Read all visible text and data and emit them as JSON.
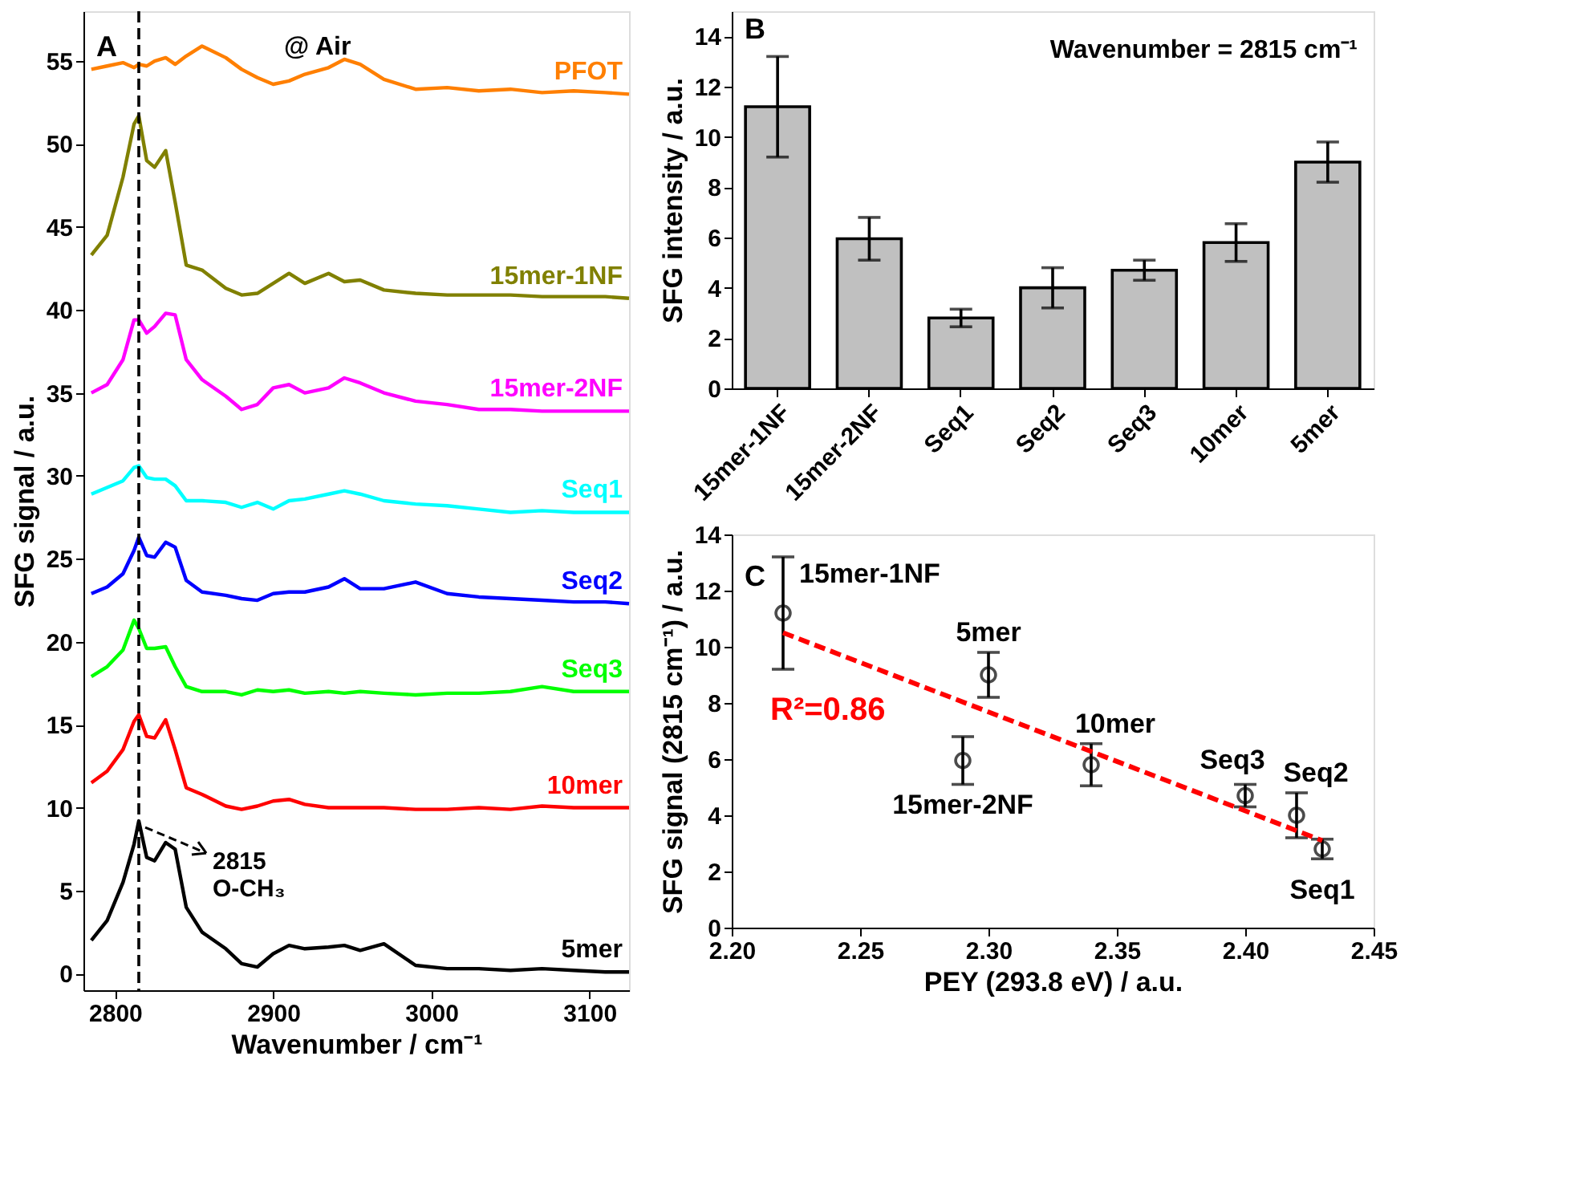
{
  "chart_data": [
    {
      "type": "line",
      "xlabel": "Wavenumber / cm⁻¹",
      "ylabel": "SFG signal / a.u.",
      "xlim": [
        2780,
        3125
      ],
      "xticks": [
        2800,
        2900,
        3000,
        3100
      ],
      "ylim": [
        -1,
        58
      ],
      "yticks": [
        0,
        5,
        10,
        15,
        20,
        25,
        30,
        35,
        40,
        45,
        50,
        55
      ],
      "x": [
        2785,
        2795,
        2805,
        2812,
        2815,
        2820,
        2825,
        2832,
        2838,
        2845,
        2855,
        2870,
        2880,
        2890,
        2900,
        2910,
        2920,
        2935,
        2945,
        2955,
        2970,
        2990,
        3010,
        3030,
        3050,
        3070,
        3090,
        3110,
        3125
      ],
      "series": [
        {
          "name": "PFOT",
          "color": "#ff7f00",
          "values": [
            54.5,
            54.7,
            54.9,
            54.6,
            54.8,
            54.7,
            55.0,
            55.2,
            54.8,
            55.3,
            55.9,
            55.2,
            54.5,
            54.0,
            53.6,
            53.8,
            54.2,
            54.6,
            55.1,
            54.8,
            53.9,
            53.3,
            53.4,
            53.2,
            53.3,
            53.1,
            53.2,
            53.1,
            53.0
          ]
        },
        {
          "name": "15mer-1NF",
          "color": "#808000",
          "values": [
            43.3,
            44.5,
            48.0,
            51.2,
            51.7,
            49.0,
            48.6,
            49.6,
            46.5,
            42.7,
            42.4,
            41.3,
            40.9,
            41.0,
            41.6,
            42.2,
            41.6,
            42.2,
            41.7,
            41.8,
            41.2,
            41.0,
            40.9,
            40.9,
            40.9,
            40.8,
            40.8,
            40.8,
            40.7
          ]
        },
        {
          "name": "15mer-2NF",
          "color": "#ff00ff",
          "values": [
            35.0,
            35.5,
            37.0,
            39.4,
            39.4,
            38.6,
            39.0,
            39.8,
            39.7,
            37.0,
            35.8,
            34.8,
            34.0,
            34.3,
            35.3,
            35.5,
            35.0,
            35.3,
            35.9,
            35.6,
            35.0,
            34.5,
            34.3,
            34.0,
            34.0,
            33.9,
            33.9,
            33.9,
            33.9
          ]
        },
        {
          "name": "Seq1",
          "color": "#00ffff",
          "values": [
            28.9,
            29.3,
            29.7,
            30.5,
            30.6,
            29.9,
            29.8,
            29.8,
            29.4,
            28.5,
            28.5,
            28.4,
            28.1,
            28.4,
            28.0,
            28.5,
            28.6,
            28.9,
            29.1,
            28.9,
            28.5,
            28.3,
            28.2,
            28.0,
            27.8,
            27.9,
            27.8,
            27.8,
            27.8
          ]
        },
        {
          "name": "Seq2",
          "color": "#0000ff",
          "values": [
            22.9,
            23.3,
            24.1,
            25.5,
            26.3,
            25.2,
            25.1,
            26.0,
            25.7,
            23.7,
            23.0,
            22.8,
            22.6,
            22.5,
            22.9,
            23.0,
            23.0,
            23.3,
            23.8,
            23.2,
            23.2,
            23.6,
            22.9,
            22.7,
            22.6,
            22.5,
            22.4,
            22.4,
            22.3
          ]
        },
        {
          "name": "Seq3",
          "color": "#00ff00",
          "values": [
            17.9,
            18.5,
            19.5,
            21.3,
            20.8,
            19.6,
            19.6,
            19.7,
            18.5,
            17.3,
            17.0,
            17.0,
            16.8,
            17.1,
            17.0,
            17.1,
            16.9,
            17.0,
            16.9,
            17.0,
            16.9,
            16.8,
            16.9,
            16.9,
            17.0,
            17.3,
            17.0,
            17.0,
            17.0
          ]
        },
        {
          "name": "10mer",
          "color": "#ff0000",
          "values": [
            11.5,
            12.2,
            13.5,
            15.2,
            15.6,
            14.3,
            14.2,
            15.3,
            13.5,
            11.2,
            10.8,
            10.1,
            9.9,
            10.1,
            10.4,
            10.5,
            10.2,
            10.0,
            10.0,
            10.0,
            10.0,
            9.9,
            9.9,
            10.0,
            9.9,
            10.1,
            10.0,
            10.0,
            10.0
          ]
        },
        {
          "name": "5mer",
          "color": "#000000",
          "values": [
            2.0,
            3.2,
            5.5,
            7.8,
            9.2,
            7.0,
            6.8,
            7.9,
            7.5,
            4.0,
            2.5,
            1.5,
            0.6,
            0.4,
            1.2,
            1.7,
            1.5,
            1.6,
            1.7,
            1.4,
            1.8,
            0.5,
            0.3,
            0.3,
            0.2,
            0.3,
            0.2,
            0.1,
            0.1
          ]
        }
      ],
      "ref_lines": [
        {
          "axis": "x",
          "value": 2815,
          "color": "#000000",
          "line_style": "dashed"
        }
      ],
      "annotations": [
        "A",
        "@ Air",
        {
          "text": "2815\nO-CH₃",
          "x": 2815,
          "y": 9.2
        }
      ]
    },
    {
      "type": "bar",
      "ylabel": "SFG intensity / a.u.",
      "categories": [
        "15mer-1NF",
        "15mer-2NF",
        "Seq1",
        "Seq2",
        "Seq3",
        "10mer",
        "5mer"
      ],
      "values": [
        11.2,
        5.95,
        2.8,
        4.0,
        4.7,
        5.8,
        9.0
      ],
      "errors": [
        2.0,
        0.85,
        0.35,
        0.8,
        0.4,
        0.75,
        0.8
      ],
      "color": "#c0c0c0",
      "ylim": [
        0,
        15
      ],
      "yticks": [
        0,
        2,
        4,
        6,
        8,
        10,
        12,
        14
      ],
      "annotations": [
        "B",
        "Wavenumber = 2815 cm⁻¹"
      ]
    },
    {
      "type": "scatter",
      "xlabel": "PEY (293.8 eV) / a.u.",
      "ylabel": "SFG signal (2815 cm⁻¹) / a.u.",
      "xlim": [
        2.2,
        2.45
      ],
      "xticks": [
        {
          "value": 2.2,
          "label": "2.20"
        },
        {
          "value": 2.25,
          "label": "2.25"
        },
        {
          "value": 2.3,
          "label": "2.30"
        },
        {
          "value": 2.35,
          "label": "2.35"
        },
        {
          "value": 2.4,
          "label": "2.40"
        },
        {
          "value": 2.45,
          "label": "2.45"
        }
      ],
      "ylim": [
        0,
        14
      ],
      "yticks": [
        0,
        2,
        4,
        6,
        8,
        10,
        12,
        14
      ],
      "series": [
        {
          "type": "scatter",
          "marker": "circle",
          "color": "#000000",
          "x": [
            2.22,
            2.29,
            2.3,
            2.34,
            2.4,
            2.42,
            2.43
          ],
          "values": [
            11.2,
            5.95,
            9.0,
            5.8,
            4.7,
            4.0,
            2.8
          ],
          "errors": [
            2.0,
            0.85,
            0.8,
            0.75,
            0.4,
            0.8,
            0.35
          ]
        },
        {
          "type": "line",
          "name": "R²=0.86",
          "color": "#ff0000",
          "line_style": "dashed",
          "x": [
            2.22,
            2.43
          ],
          "values": [
            10.5,
            3.1
          ]
        }
      ],
      "annotations": [
        "C",
        {
          "text": "15mer-1NF",
          "x": 2.22,
          "y": 11.2
        },
        {
          "text": "5mer",
          "x": 2.3,
          "y": 9.0
        },
        {
          "text": "15mer-2NF",
          "x": 2.29,
          "y": 5.95
        },
        {
          "text": "10mer",
          "x": 2.34,
          "y": 5.8
        },
        {
          "text": "Seq3",
          "x": 2.4,
          "y": 4.7
        },
        {
          "text": "Seq2",
          "x": 2.42,
          "y": 4.0
        },
        {
          "text": "Seq1",
          "x": 2.43,
          "y": 2.8
        }
      ]
    }
  ]
}
